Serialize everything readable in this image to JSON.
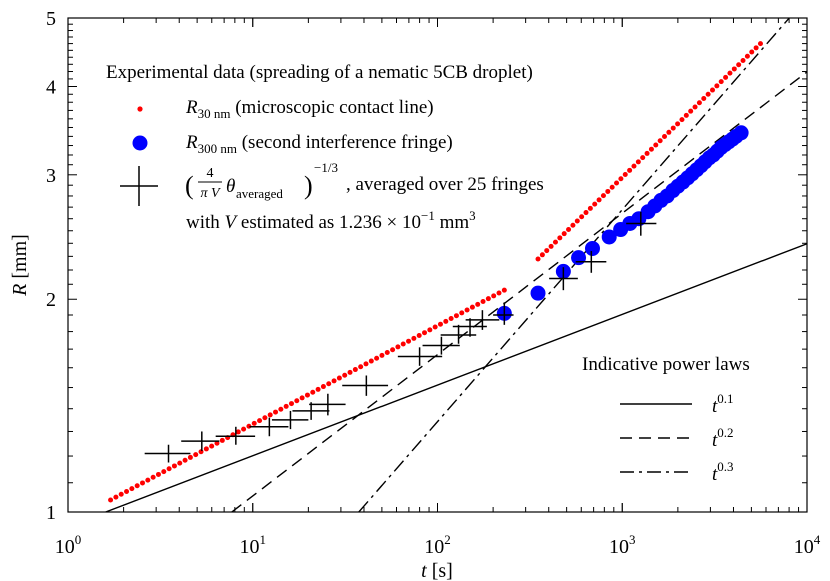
{
  "chart_data": {
    "type": "scatter",
    "xlabel_var": "t",
    "xlabel_unit": "[s]",
    "ylabel_var": "R",
    "ylabel_unit": "[mm]",
    "x_scale": "log",
    "y_scale": "log",
    "xlim": [
      1,
      10000
    ],
    "ylim": [
      1,
      5
    ],
    "grid": false,
    "legend_position": "top-left",
    "x_ticks": [
      {
        "value": 1,
        "base": "10",
        "exp": "0"
      },
      {
        "value": 10,
        "base": "10",
        "exp": "1"
      },
      {
        "value": 100,
        "base": "10",
        "exp": "2"
      },
      {
        "value": 1000,
        "base": "10",
        "exp": "3"
      },
      {
        "value": 10000,
        "base": "10",
        "exp": "4"
      }
    ],
    "y_ticks": [
      {
        "value": 1,
        "label": "1"
      },
      {
        "value": 2,
        "label": "2"
      },
      {
        "value": 3,
        "label": "3"
      },
      {
        "value": 4,
        "label": "4"
      },
      {
        "value": 5,
        "label": "5"
      }
    ],
    "legend_title": "Experimental data (spreading of a nematic 5CB droplet)",
    "legend_entries": {
      "r30": {
        "symbol": "R",
        "sub": "30 nm",
        "text": "(microscopic contact line)"
      },
      "r300": {
        "symbol": "R",
        "sub": "300 nm",
        "text": "(second interference fringe)"
      },
      "theta": {
        "frac_num": "4",
        "frac_den": "π V",
        "theta_sub": "averaged",
        "exponent": "−1/3",
        "text": ", averaged over 25 fringes",
        "line2_prefix": "with",
        "line2_var": "V",
        "line2_text": "estimated as 1.236 × 10",
        "line2_exp": "−1",
        "line2_unit": "mm",
        "line2_unit_exp": "3"
      }
    },
    "power_law_title": "Indicative power laws",
    "power_laws": [
      {
        "base": "t",
        "exponent": "0.1",
        "slope": 0.1,
        "anchor_t": 1.6,
        "anchor_r": 1.0,
        "style": "solid"
      },
      {
        "base": "t",
        "exponent": "0.2",
        "slope": 0.2,
        "anchor_t": 7.7,
        "anchor_r": 1.0,
        "style": "dashed"
      },
      {
        "base": "t",
        "exponent": "0.3",
        "slope": 0.3,
        "anchor_t": 37.5,
        "anchor_r": 1.0,
        "style": "dashdot"
      }
    ],
    "series": [
      {
        "name": "R_30nm",
        "color": "#ff0000",
        "marker": "small-dot",
        "segments": [
          {
            "t_start": 1.7,
            "t_end": 230,
            "n": 75,
            "r_start": 1.04,
            "r_end": 2.06,
            "bend": 0.0
          },
          {
            "t_start": 350,
            "t_end": 5600,
            "n": 52,
            "r_start": 2.28,
            "r_end": 4.6,
            "bend": 0.0
          }
        ]
      },
      {
        "name": "R_300nm",
        "color": "#0000ff",
        "marker": "large-dot",
        "points": [
          [
            230,
            1.91
          ],
          [
            350,
            2.04
          ],
          [
            480,
            2.19
          ],
          [
            580,
            2.29
          ],
          [
            690,
            2.36
          ],
          [
            850,
            2.45
          ],
          [
            980,
            2.51
          ],
          [
            1100,
            2.56
          ],
          [
            1230,
            2.6
          ],
          [
            1380,
            2.66
          ],
          [
            1500,
            2.71
          ],
          [
            1620,
            2.76
          ],
          [
            1750,
            2.8
          ],
          [
            1880,
            2.85
          ],
          [
            2000,
            2.89
          ],
          [
            2130,
            2.93
          ],
          [
            2260,
            2.97
          ],
          [
            2390,
            3.01
          ],
          [
            2530,
            3.05
          ],
          [
            2670,
            3.09
          ],
          [
            2810,
            3.13
          ],
          [
            2960,
            3.17
          ],
          [
            3110,
            3.2
          ],
          [
            3270,
            3.24
          ],
          [
            3430,
            3.28
          ],
          [
            3600,
            3.31
          ],
          [
            3770,
            3.34
          ],
          [
            3950,
            3.37
          ],
          [
            4130,
            3.4
          ],
          [
            4400,
            3.44
          ]
        ]
      },
      {
        "name": "theta_averaged",
        "color": "#000000",
        "marker": "cross",
        "points": [
          [
            3.5,
            1.21,
            2.6,
            4.6,
            1.175,
            1.245
          ],
          [
            5.3,
            1.26,
            4.1,
            6.6,
            1.22,
            1.3
          ],
          [
            8.1,
            1.28,
            6.3,
            10.3,
            1.245,
            1.32
          ],
          [
            12.3,
            1.32,
            9.6,
            15.6,
            1.28,
            1.36
          ],
          [
            16.0,
            1.35,
            12.7,
            20.0,
            1.31,
            1.39
          ],
          [
            20.7,
            1.39,
            16.4,
            26.0,
            1.35,
            1.43
          ],
          [
            25.5,
            1.42,
            20.2,
            31.8,
            1.37,
            1.47
          ],
          [
            41.2,
            1.51,
            30.5,
            54.0,
            1.46,
            1.56
          ],
          [
            80.0,
            1.66,
            61.0,
            106.0,
            1.61,
            1.71
          ],
          [
            105.0,
            1.72,
            83.0,
            132.0,
            1.67,
            1.77
          ],
          [
            130.0,
            1.78,
            104.0,
            162.0,
            1.73,
            1.84
          ],
          [
            150.0,
            1.83,
            121.0,
            185.0,
            1.77,
            1.88
          ],
          [
            175.0,
            1.87,
            142.0,
            216.0,
            1.81,
            1.93
          ],
          [
            230.0,
            1.9,
            200.0,
            258.0,
            1.84,
            1.98
          ],
          [
            480.0,
            2.14,
            402.0,
            575.0,
            2.06,
            2.22
          ],
          [
            680.0,
            2.26,
            560.0,
            820.0,
            2.18,
            2.34
          ],
          [
            1260.0,
            2.56,
            1050.0,
            1530.0,
            2.46,
            2.66
          ]
        ]
      }
    ]
  }
}
